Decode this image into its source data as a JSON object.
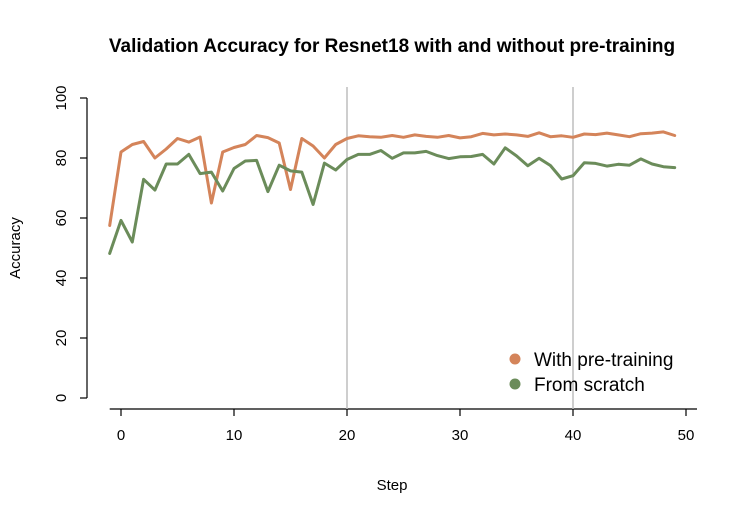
{
  "chart_data": {
    "type": "line",
    "title": "Validation Accuracy for Resnet18 with and without pre-training",
    "xlabel": "Step",
    "ylabel": "Accuracy",
    "xlim": [
      -1,
      49
    ],
    "ylim": [
      0,
      100
    ],
    "xticks": [
      0,
      10,
      20,
      30,
      40,
      50
    ],
    "yticks": [
      0,
      20,
      40,
      60,
      80,
      100
    ],
    "vlines": [
      20,
      40
    ],
    "grid": false,
    "legend_position": "bottom-right",
    "x": [
      -1,
      0,
      1,
      2,
      3,
      4,
      5,
      6,
      7,
      8,
      9,
      10,
      11,
      12,
      13,
      14,
      15,
      16,
      17,
      18,
      19,
      20,
      21,
      22,
      23,
      24,
      25,
      26,
      27,
      28,
      29,
      30,
      31,
      32,
      33,
      34,
      35,
      36,
      37,
      38,
      39,
      40,
      41,
      42,
      43,
      44,
      45,
      46,
      47,
      48,
      49
    ],
    "series": [
      {
        "name": "With pre-training",
        "color": "#d4845a",
        "values": [
          57.5,
          82,
          84.5,
          85.5,
          80,
          83,
          86.5,
          85.3,
          87,
          65,
          82,
          83.5,
          84.5,
          87.5,
          86.8,
          85,
          69.5,
          86.5,
          84,
          80,
          84.5,
          86.5,
          87.4,
          87.1,
          86.9,
          87.5,
          86.9,
          87.7,
          87.2,
          86.9,
          87.5,
          86.7,
          87.1,
          88.2,
          87.7,
          88,
          87.7,
          87.2,
          88.4,
          87.1,
          87.4,
          86.9,
          88,
          87.8,
          88.3,
          87.7,
          87.1,
          88.1,
          88.3,
          88.7,
          87.5
        ]
      },
      {
        "name": "From scratch",
        "color": "#6b8c5a",
        "values": [
          48.2,
          59.2,
          52,
          72.9,
          69.3,
          78,
          78,
          81.2,
          74.8,
          75.3,
          69,
          76.5,
          79,
          79.2,
          68.8,
          77.6,
          75.7,
          75.3,
          64.5,
          78.3,
          76,
          79.5,
          81.2,
          81.2,
          82.5,
          79.9,
          81.7,
          81.7,
          82.2,
          80.8,
          79.8,
          80.4,
          80.5,
          81.2,
          78,
          83.4,
          80.7,
          77.4,
          79.9,
          77.5,
          73,
          74.1,
          78.4,
          78.2,
          77.3,
          77.9,
          77.6,
          79.7,
          78,
          77.1,
          76.8
        ]
      }
    ]
  }
}
